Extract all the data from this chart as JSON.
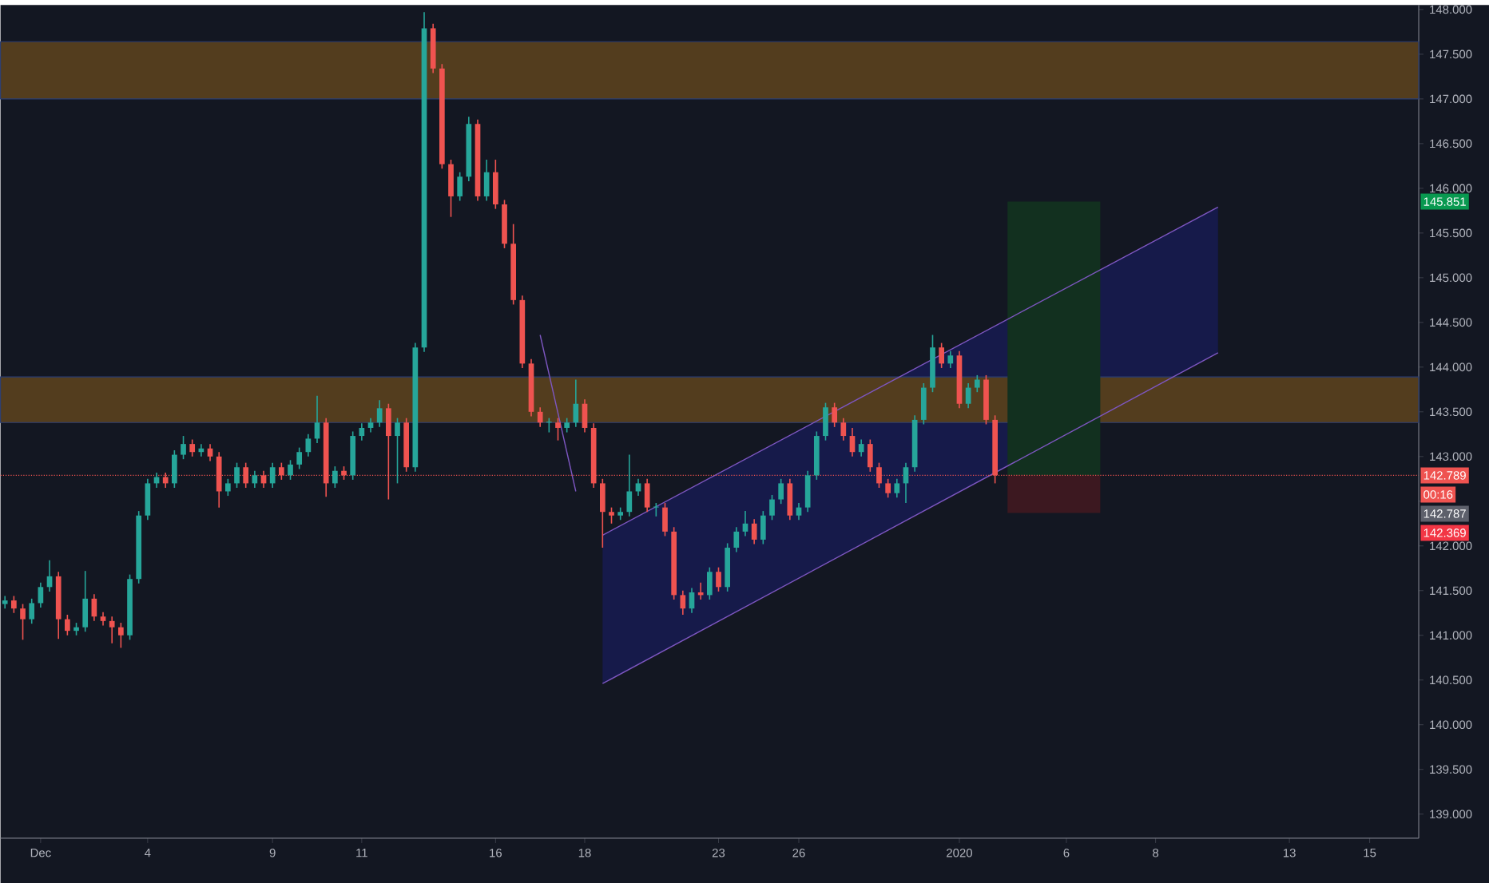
{
  "chart_data": {
    "type": "candlestick",
    "categories": [
      null,
      null,
      null,
      null,
      "Dec",
      null,
      null,
      null,
      null,
      null,
      null,
      null,
      null,
      null,
      null,
      null,
      "4",
      null,
      null,
      null,
      null,
      null,
      null,
      null,
      null,
      null,
      null,
      null,
      null,
      null,
      "9",
      null,
      null,
      null,
      null,
      null,
      null,
      null,
      null,
      null,
      "11",
      null,
      null,
      null,
      null,
      null,
      null,
      null,
      null,
      null,
      null,
      null,
      null,
      null,
      null,
      "16",
      null,
      null,
      null,
      null,
      null,
      null,
      null,
      null,
      null,
      "18",
      null,
      null,
      null,
      null,
      null,
      null,
      null,
      null,
      null,
      null,
      null,
      null,
      null,
      null,
      "23",
      null,
      null,
      null,
      null,
      null,
      null,
      null,
      null,
      "26",
      null,
      null,
      null,
      null,
      null,
      null,
      null,
      null,
      null,
      null,
      null,
      null,
      null,
      null,
      null,
      null,
      null,
      "2020",
      null,
      null,
      null,
      null,
      null,
      null,
      null,
      null,
      null,
      null,
      null,
      "6",
      null,
      null,
      null,
      null,
      null,
      null,
      null,
      null,
      null,
      "8",
      null,
      null,
      null,
      null,
      null,
      null,
      null,
      null,
      null,
      null,
      null,
      null,
      null,
      null,
      "13",
      null,
      null,
      null,
      null,
      null,
      null,
      null,
      null,
      "15",
      null,
      null,
      null,
      null,
      null
    ],
    "ohlc": [
      [
        141.35,
        141.44,
        141.3,
        141.39
      ],
      [
        141.39,
        141.44,
        141.25,
        141.3
      ],
      [
        141.3,
        141.35,
        140.95,
        141.18
      ],
      [
        141.18,
        141.41,
        141.13,
        141.36
      ],
      [
        141.36,
        141.59,
        141.31,
        141.54
      ],
      [
        141.54,
        141.84,
        141.49,
        141.66
      ],
      [
        141.66,
        141.71,
        140.96,
        141.18
      ],
      [
        141.18,
        141.23,
        141.0,
        141.05
      ],
      [
        141.05,
        141.14,
        141.0,
        141.09
      ],
      [
        141.09,
        141.72,
        141.04,
        141.41
      ],
      [
        141.41,
        141.46,
        141.16,
        141.21
      ],
      [
        141.21,
        141.26,
        141.11,
        141.16
      ],
      [
        141.16,
        141.21,
        140.91,
        141.09
      ],
      [
        141.09,
        141.14,
        140.86,
        141.0
      ],
      [
        141.0,
        141.68,
        140.95,
        141.63
      ],
      [
        141.63,
        142.39,
        141.58,
        142.34
      ],
      [
        142.34,
        142.75,
        142.29,
        142.7
      ],
      [
        142.7,
        142.82,
        142.65,
        142.77
      ],
      [
        142.77,
        142.82,
        142.65,
        142.7
      ],
      [
        142.7,
        143.07,
        142.65,
        143.02
      ],
      [
        143.02,
        143.23,
        142.97,
        143.14
      ],
      [
        143.14,
        143.19,
        143.0,
        143.05
      ],
      [
        143.05,
        143.14,
        143.0,
        143.09
      ],
      [
        143.09,
        143.14,
        142.95,
        143.0
      ],
      [
        143.0,
        143.05,
        142.43,
        142.61
      ],
      [
        142.61,
        142.75,
        142.56,
        142.7
      ],
      [
        142.7,
        142.93,
        142.65,
        142.88
      ],
      [
        142.88,
        142.93,
        142.65,
        142.7
      ],
      [
        142.7,
        142.84,
        142.65,
        142.79
      ],
      [
        142.79,
        142.84,
        142.65,
        142.7
      ],
      [
        142.7,
        142.93,
        142.65,
        142.88
      ],
      [
        142.88,
        142.93,
        142.74,
        142.79
      ],
      [
        142.79,
        142.96,
        142.74,
        142.91
      ],
      [
        142.91,
        143.1,
        142.86,
        143.05
      ],
      [
        143.05,
        143.25,
        143.0,
        143.2
      ],
      [
        143.2,
        143.68,
        143.15,
        143.38
      ],
      [
        143.38,
        143.43,
        142.55,
        142.7
      ],
      [
        142.7,
        142.89,
        142.65,
        142.84
      ],
      [
        142.84,
        142.89,
        142.74,
        142.79
      ],
      [
        142.79,
        143.28,
        142.74,
        143.23
      ],
      [
        143.23,
        143.37,
        143.18,
        143.32
      ],
      [
        143.32,
        143.43,
        143.27,
        143.38
      ],
      [
        143.38,
        143.63,
        143.33,
        143.54
      ],
      [
        143.54,
        143.59,
        142.52,
        143.23
      ],
      [
        143.23,
        143.43,
        142.7,
        143.38
      ],
      [
        143.38,
        143.43,
        142.83,
        142.88
      ],
      [
        142.88,
        144.27,
        142.83,
        144.22
      ],
      [
        144.22,
        147.97,
        144.17,
        147.79
      ],
      [
        147.79,
        147.84,
        147.29,
        147.34
      ],
      [
        147.34,
        147.39,
        146.22,
        146.27
      ],
      [
        146.27,
        146.32,
        145.68,
        145.91
      ],
      [
        145.91,
        146.18,
        145.86,
        146.13
      ],
      [
        146.13,
        146.8,
        146.08,
        146.72
      ],
      [
        146.72,
        146.77,
        145.86,
        145.91
      ],
      [
        145.91,
        146.32,
        145.86,
        146.18
      ],
      [
        146.18,
        146.32,
        145.77,
        145.82
      ],
      [
        145.82,
        145.87,
        145.33,
        145.38
      ],
      [
        145.38,
        145.6,
        144.7,
        144.75
      ],
      [
        144.75,
        144.8,
        143.99,
        144.04
      ],
      [
        144.04,
        144.09,
        143.45,
        143.5
      ],
      [
        143.5,
        143.55,
        143.33,
        143.38
      ],
      [
        143.38,
        143.43,
        143.27,
        143.38
      ],
      [
        143.38,
        143.43,
        143.18,
        143.32
      ],
      [
        143.32,
        143.43,
        143.27,
        143.38
      ],
      [
        143.38,
        143.86,
        143.33,
        143.59
      ],
      [
        143.59,
        143.64,
        143.27,
        143.32
      ],
      [
        143.32,
        143.37,
        142.65,
        142.7
      ],
      [
        142.7,
        142.75,
        141.98,
        142.38
      ],
      [
        142.38,
        142.43,
        142.25,
        142.34
      ],
      [
        142.34,
        142.43,
        142.29,
        142.38
      ],
      [
        142.38,
        143.02,
        142.33,
        142.61
      ],
      [
        142.61,
        142.75,
        142.56,
        142.7
      ],
      [
        142.7,
        142.75,
        142.38,
        142.43
      ],
      [
        142.43,
        142.48,
        142.33,
        142.43
      ],
      [
        142.43,
        142.48,
        142.11,
        142.16
      ],
      [
        142.16,
        142.21,
        141.4,
        141.45
      ],
      [
        141.45,
        141.5,
        141.23,
        141.3
      ],
      [
        141.3,
        141.53,
        141.25,
        141.48
      ],
      [
        141.48,
        141.59,
        141.4,
        141.45
      ],
      [
        141.45,
        141.76,
        141.4,
        141.71
      ],
      [
        141.71,
        141.76,
        141.49,
        141.54
      ],
      [
        141.54,
        142.03,
        141.49,
        141.98
      ],
      [
        141.98,
        142.21,
        141.93,
        142.16
      ],
      [
        142.16,
        142.39,
        142.11,
        142.25
      ],
      [
        142.25,
        142.3,
        142.02,
        142.07
      ],
      [
        142.07,
        142.39,
        142.02,
        142.34
      ],
      [
        142.34,
        142.57,
        142.29,
        142.52
      ],
      [
        142.52,
        142.75,
        142.47,
        142.7
      ],
      [
        142.7,
        142.75,
        142.29,
        142.34
      ],
      [
        142.34,
        142.48,
        142.29,
        142.43
      ],
      [
        142.43,
        142.84,
        142.38,
        142.79
      ],
      [
        142.79,
        143.28,
        142.74,
        143.23
      ],
      [
        143.23,
        143.6,
        143.18,
        143.55
      ],
      [
        143.55,
        143.6,
        143.33,
        143.38
      ],
      [
        143.38,
        143.43,
        143.18,
        143.23
      ],
      [
        143.23,
        143.32,
        143.0,
        143.05
      ],
      [
        143.05,
        143.19,
        143.0,
        143.14
      ],
      [
        143.14,
        143.19,
        142.83,
        142.88
      ],
      [
        142.88,
        142.93,
        142.65,
        142.7
      ],
      [
        142.7,
        142.75,
        142.54,
        142.59
      ],
      [
        142.59,
        142.75,
        142.54,
        142.7
      ],
      [
        142.7,
        142.93,
        142.48,
        142.88
      ],
      [
        142.88,
        143.46,
        142.83,
        143.41
      ],
      [
        143.41,
        143.82,
        143.36,
        143.77
      ],
      [
        143.77,
        144.36,
        143.72,
        144.22
      ],
      [
        144.22,
        144.27,
        143.99,
        144.04
      ],
      [
        144.04,
        144.18,
        143.99,
        144.13
      ],
      [
        144.13,
        144.18,
        143.54,
        143.59
      ],
      [
        143.59,
        143.82,
        143.54,
        143.77
      ],
      [
        143.77,
        143.91,
        143.72,
        143.86
      ],
      [
        143.86,
        143.91,
        143.36,
        143.41
      ],
      [
        143.41,
        143.46,
        142.7,
        142.79
      ],
      null,
      null,
      null,
      null,
      null,
      null,
      null,
      null,
      null,
      null,
      null,
      null,
      null,
      null,
      null,
      null,
      null,
      null,
      null,
      null,
      null,
      null,
      null,
      null,
      null,
      null,
      null,
      null,
      null,
      null,
      null,
      null,
      null,
      null,
      null,
      null,
      null,
      null,
      null,
      null,
      null,
      null,
      null,
      null,
      null,
      null,
      null
    ],
    "series": [
      {
        "type": "line",
        "color": "#7e57c2",
        "values": [
          null,
          null,
          null,
          null,
          null,
          null,
          null,
          null,
          null,
          null,
          null,
          null,
          null,
          null,
          null,
          null,
          null,
          null,
          null,
          null,
          null,
          null,
          null,
          null,
          null,
          null,
          null,
          null,
          null,
          null,
          null,
          null,
          null,
          null,
          null,
          null,
          null,
          null,
          null,
          null,
          null,
          null,
          null,
          null,
          null,
          null,
          null,
          null,
          null,
          null,
          null,
          null,
          null,
          null,
          null,
          null,
          null,
          null,
          null,
          null,
          null,
          null,
          null,
          null,
          null,
          null,
          null,
          142.12,
          null,
          null,
          null,
          null,
          null,
          null,
          null,
          null,
          null,
          null,
          null,
          null,
          null,
          null,
          null,
          null,
          null,
          null,
          null,
          null,
          null,
          null,
          null,
          null,
          null,
          null,
          null,
          null,
          null,
          null,
          null,
          null,
          null,
          null,
          null,
          null,
          null,
          null,
          null,
          null,
          null,
          null,
          null,
          null,
          null,
          null,
          null,
          null,
          null,
          null,
          null,
          null,
          null,
          null,
          null,
          null,
          null,
          null,
          null,
          null,
          null,
          null,
          null,
          null,
          null,
          null,
          null,
          null,
          145.79,
          null,
          null,
          null,
          null,
          null,
          null,
          null,
          null,
          null,
          null,
          null,
          null,
          null,
          null,
          null,
          null,
          null,
          null,
          null,
          null,
          null,
          null
        ]
      },
      {
        "type": "line",
        "color": "#7e57c2",
        "values": [
          null,
          null,
          null,
          null,
          null,
          null,
          null,
          null,
          null,
          null,
          null,
          null,
          null,
          null,
          null,
          null,
          null,
          null,
          null,
          null,
          null,
          null,
          null,
          null,
          null,
          null,
          null,
          null,
          null,
          null,
          null,
          null,
          null,
          null,
          null,
          null,
          null,
          null,
          null,
          null,
          null,
          null,
          null,
          null,
          null,
          null,
          null,
          null,
          null,
          null,
          null,
          null,
          null,
          null,
          null,
          null,
          null,
          null,
          null,
          null,
          null,
          null,
          null,
          null,
          null,
          null,
          null,
          140.46,
          null,
          null,
          null,
          null,
          null,
          null,
          null,
          null,
          null,
          null,
          null,
          null,
          null,
          null,
          null,
          null,
          null,
          null,
          null,
          null,
          null,
          null,
          null,
          null,
          null,
          null,
          null,
          null,
          null,
          null,
          null,
          null,
          null,
          null,
          null,
          null,
          null,
          null,
          null,
          null,
          null,
          null,
          null,
          null,
          null,
          null,
          null,
          null,
          null,
          null,
          null,
          null,
          null,
          null,
          null,
          null,
          null,
          null,
          null,
          null,
          null,
          null,
          null,
          null,
          null,
          null,
          null,
          null,
          144.16,
          null,
          null,
          null,
          null,
          null,
          null,
          null,
          null,
          null,
          null,
          null,
          null,
          null,
          null,
          null,
          null,
          null,
          null,
          null,
          null,
          null,
          null
        ]
      },
      {
        "type": "line",
        "color": "#7e57c2",
        "values": [
          null,
          null,
          null,
          null,
          null,
          null,
          null,
          null,
          null,
          null,
          null,
          null,
          null,
          null,
          null,
          null,
          null,
          null,
          null,
          null,
          null,
          null,
          null,
          null,
          null,
          null,
          null,
          null,
          null,
          null,
          null,
          null,
          null,
          null,
          null,
          null,
          null,
          null,
          null,
          null,
          null,
          null,
          null,
          null,
          null,
          null,
          null,
          null,
          null,
          null,
          null,
          null,
          null,
          null,
          null,
          null,
          null,
          null,
          null,
          null,
          144.36,
          null,
          null,
          null,
          142.61,
          null,
          null,
          null,
          null,
          null,
          null,
          null,
          null,
          null,
          null,
          null,
          null,
          null,
          null,
          null,
          null,
          null,
          null,
          null,
          null,
          null,
          null,
          null,
          null,
          null,
          null,
          null,
          null,
          null,
          null,
          null,
          null,
          null,
          null,
          null,
          null,
          null,
          null,
          null,
          null,
          null,
          null,
          null,
          null,
          null,
          null,
          null,
          null,
          null,
          null,
          null,
          null,
          null,
          null,
          null,
          null,
          null,
          null,
          null,
          null,
          null,
          null,
          null,
          null,
          null,
          null,
          null,
          null,
          null,
          null,
          null,
          null,
          null,
          null,
          null,
          null,
          null,
          null,
          null,
          null,
          null,
          null,
          null,
          null,
          null,
          null,
          null,
          null,
          null,
          null,
          null,
          null,
          null,
          null
        ]
      }
    ],
    "ylim": [
      138.73,
      148.05
    ],
    "yticks": [
      {
        "value": 139,
        "label": "139.000"
      },
      {
        "value": 139.5,
        "label": "139.500"
      },
      {
        "value": 140,
        "label": "140.000"
      },
      {
        "value": 140.5,
        "label": "140.500"
      },
      {
        "value": 141,
        "label": "141.000"
      },
      {
        "value": 141.5,
        "label": "141.500"
      },
      {
        "value": 142,
        "label": "142.000"
      },
      {
        "value": 142.5,
        "label": null
      },
      {
        "value": 143,
        "label": "143.000"
      },
      {
        "value": 143.5,
        "label": "143.500"
      },
      {
        "value": 144,
        "label": "144.000"
      },
      {
        "value": 144.5,
        "label": "144.500"
      },
      {
        "value": 145,
        "label": "145.000"
      },
      {
        "value": 145.5,
        "label": "145.500"
      },
      {
        "value": 146,
        "label": "146.000"
      },
      {
        "value": 146.5,
        "label": "146.500"
      },
      {
        "value": 147,
        "label": "147.000"
      },
      {
        "value": 147.5,
        "label": "147.500"
      },
      {
        "value": 148,
        "label": "148.000"
      }
    ],
    "bands": [
      {
        "axis": "y",
        "from": 147.0,
        "to": 147.64,
        "color": "#533d1e"
      },
      {
        "axis": "y",
        "from": 143.38,
        "to": 143.89,
        "color": "#533d1e"
      }
    ],
    "ref_lines": [
      {
        "axis": "y",
        "value": 142.789,
        "label": "142.789",
        "color": "#ef5350",
        "line_style": "dotted"
      }
    ],
    "annotations": [
      {
        "text": "145.851",
        "y": 145.851
      },
      "00:16",
      "142.787",
      {
        "text": "142.369",
        "y": 142.369
      }
    ]
  }
}
